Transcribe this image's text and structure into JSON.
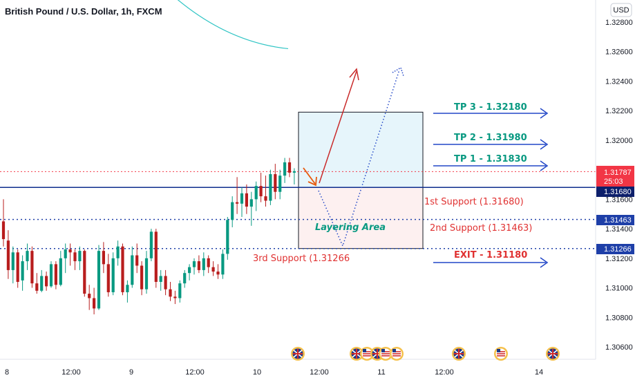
{
  "header": {
    "title": "British Pound / U.S. Dollar, 1h, FXCM",
    "currency": "USD"
  },
  "chart_data": {
    "type": "candlestick",
    "title": "British Pound / U.S. Dollar, 1h, FXCM",
    "ylim": [
      1.3045,
      1.3305
    ],
    "y_ticks": [
      "1.32800",
      "1.32600",
      "1.32400",
      "1.32200",
      "1.32000",
      "1.31600",
      "1.31400",
      "1.31200",
      "1.31000",
      "1.30800",
      "1.30600"
    ],
    "x_ticks": [
      "8",
      "12:00",
      "9",
      "12:00",
      "10",
      "12:00",
      "11",
      "12:00",
      "14"
    ],
    "current_price": {
      "value": "1.31787",
      "countdown": "25:03",
      "color": "#f23645"
    },
    "horizontal_levels": [
      {
        "value": "1.31680",
        "style": "solid",
        "color": "#0d2c8c",
        "label": "1st Support (1.31680)"
      },
      {
        "value": "1.31463",
        "style": "dotted",
        "color": "#1e3fa8",
        "label": "2nd Support (1.31463)"
      },
      {
        "value": "1.31266",
        "style": "dotted",
        "color": "#1e3fa8",
        "label": "3rd Support (1.31266"
      }
    ],
    "targets": [
      {
        "label": "TP 3 - 1.32180",
        "price": 1.3218,
        "color": "#089981"
      },
      {
        "label": "TP 2 - 1.31980",
        "price": 1.3198,
        "color": "#089981"
      },
      {
        "label": "TP 1 - 1.31830",
        "price": 1.3183,
        "color": "#089981"
      },
      {
        "label": "EXIT - 1.31180",
        "price": 1.3118,
        "color": "#e03131"
      }
    ],
    "zones": {
      "profit": {
        "top": 1.3219,
        "bottom": 1.3168,
        "color": "#e6f5fb"
      },
      "loss": {
        "top": 1.3168,
        "bottom": 1.31266,
        "color": "#fdf0f0"
      },
      "layering_label": "Layering Area"
    },
    "candles": [
      [
        1.3145,
        1.316,
        1.3128,
        1.3133
      ],
      [
        1.3132,
        1.3139,
        1.3106,
        1.3112
      ],
      [
        1.3112,
        1.3128,
        1.3103,
        1.3124
      ],
      [
        1.3124,
        1.3126,
        1.31,
        1.3104
      ],
      [
        1.3105,
        1.3122,
        1.3098,
        1.3118
      ],
      [
        1.3118,
        1.313,
        1.3112,
        1.3125
      ],
      [
        1.3125,
        1.3128,
        1.31,
        1.3103
      ],
      [
        1.3103,
        1.311,
        1.3096,
        1.3098
      ],
      [
        1.3098,
        1.3112,
        1.3097,
        1.3108
      ],
      [
        1.3108,
        1.3111,
        1.3098,
        1.3101
      ],
      [
        1.3101,
        1.3118,
        1.31,
        1.3116
      ],
      [
        1.3116,
        1.3118,
        1.3099,
        1.3102
      ],
      [
        1.3102,
        1.3125,
        1.3101,
        1.312
      ],
      [
        1.312,
        1.313,
        1.311,
        1.3126
      ],
      [
        1.3126,
        1.313,
        1.3115,
        1.3124
      ],
      [
        1.3124,
        1.3126,
        1.3112,
        1.3118
      ],
      [
        1.3118,
        1.3128,
        1.3112,
        1.3125
      ],
      [
        1.3125,
        1.3126,
        1.3094,
        1.3096
      ],
      [
        1.3096,
        1.3102,
        1.3085,
        1.3093
      ],
      [
        1.3093,
        1.31,
        1.3082,
        1.3086
      ],
      [
        1.3086,
        1.3129,
        1.3085,
        1.3125
      ],
      [
        1.3125,
        1.3131,
        1.311,
        1.3116
      ],
      [
        1.3116,
        1.3123,
        1.3094,
        1.3097
      ],
      [
        1.3097,
        1.3124,
        1.3095,
        1.312
      ],
      [
        1.312,
        1.3132,
        1.3115,
        1.3128
      ],
      [
        1.3128,
        1.313,
        1.3095,
        1.3097
      ],
      [
        1.3097,
        1.3105,
        1.309,
        1.3102
      ],
      [
        1.3102,
        1.3128,
        1.31,
        1.3122
      ],
      [
        1.3122,
        1.313,
        1.311,
        1.3115
      ],
      [
        1.3115,
        1.3118,
        1.3095,
        1.3099
      ],
      [
        1.3099,
        1.3125,
        1.3096,
        1.312
      ],
      [
        1.312,
        1.314,
        1.3118,
        1.3138
      ],
      [
        1.3138,
        1.314,
        1.31,
        1.3104
      ],
      [
        1.3104,
        1.3112,
        1.3098,
        1.3108
      ],
      [
        1.3108,
        1.3112,
        1.3095,
        1.3099
      ],
      [
        1.3099,
        1.3104,
        1.3091,
        1.3094
      ],
      [
        1.3094,
        1.3098,
        1.3089,
        1.3093
      ],
      [
        1.3093,
        1.3105,
        1.309,
        1.3103
      ],
      [
        1.3103,
        1.3112,
        1.31,
        1.311
      ],
      [
        1.311,
        1.3116,
        1.3105,
        1.3114
      ],
      [
        1.3114,
        1.312,
        1.3109,
        1.3118
      ],
      [
        1.3118,
        1.3122,
        1.311,
        1.3112
      ],
      [
        1.3112,
        1.3124,
        1.3108,
        1.312
      ],
      [
        1.312,
        1.3122,
        1.311,
        1.3114
      ],
      [
        1.3114,
        1.3118,
        1.3108,
        1.3111
      ],
      [
        1.3111,
        1.3116,
        1.3106,
        1.3109
      ],
      [
        1.3109,
        1.3126,
        1.3106,
        1.3123
      ],
      [
        1.3123,
        1.3148,
        1.3119,
        1.3146
      ],
      [
        1.3146,
        1.3162,
        1.3141,
        1.3158
      ],
      [
        1.3158,
        1.3175,
        1.315,
        1.3157
      ],
      [
        1.3157,
        1.3168,
        1.3148,
        1.3164
      ],
      [
        1.3164,
        1.317,
        1.315,
        1.3155
      ],
      [
        1.3155,
        1.3165,
        1.3142,
        1.316
      ],
      [
        1.316,
        1.3172,
        1.3152,
        1.3169
      ],
      [
        1.3169,
        1.3178,
        1.3158,
        1.3162
      ],
      [
        1.3162,
        1.3176,
        1.3155,
        1.3159
      ],
      [
        1.3159,
        1.318,
        1.3156,
        1.3177
      ],
      [
        1.3177,
        1.3184,
        1.316,
        1.3165
      ],
      [
        1.3165,
        1.318,
        1.316,
        1.3176
      ],
      [
        1.3176,
        1.3188,
        1.3171,
        1.3185
      ],
      [
        1.3185,
        1.3188,
        1.3175,
        1.3178
      ],
      [
        1.3178,
        1.3181,
        1.317,
        1.3179
      ]
    ],
    "ema_line": {
      "from": 1.3304,
      "to": 1.3262,
      "color": "#2ec4c4"
    },
    "news_flags": [
      "GB",
      "GB",
      "US",
      "GB",
      "US",
      "US",
      "GB",
      "US",
      "GB"
    ]
  },
  "colors": {
    "up": "#089981",
    "down": "#b81d1d",
    "red_arrow": "#c92a2a",
    "blue_arrow": "#2146c7",
    "orange_arrow": "#e8590c"
  }
}
